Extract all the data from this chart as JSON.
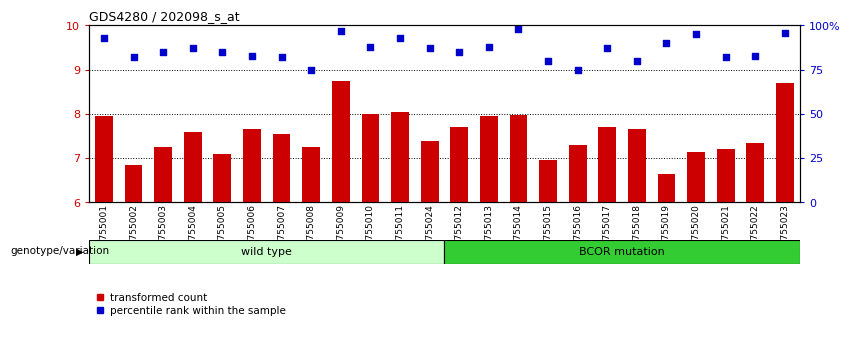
{
  "title": "GDS4280 / 202098_s_at",
  "samples": [
    "GSM755001",
    "GSM755002",
    "GSM755003",
    "GSM755004",
    "GSM755005",
    "GSM755006",
    "GSM755007",
    "GSM755008",
    "GSM755009",
    "GSM755010",
    "GSM755011",
    "GSM755024",
    "GSM755012",
    "GSM755013",
    "GSM755014",
    "GSM755015",
    "GSM755016",
    "GSM755017",
    "GSM755018",
    "GSM755019",
    "GSM755020",
    "GSM755021",
    "GSM755022",
    "GSM755023"
  ],
  "transformed_count": [
    7.95,
    6.85,
    7.25,
    7.6,
    7.1,
    7.65,
    7.55,
    7.25,
    8.75,
    8.0,
    8.05,
    7.4,
    7.7,
    7.95,
    7.98,
    6.95,
    7.3,
    7.7,
    7.65,
    6.65,
    7.15,
    7.2,
    7.35,
    8.7
  ],
  "percentile_rank": [
    93,
    82,
    85,
    87,
    85,
    83,
    82,
    75,
    97,
    88,
    93,
    87,
    85,
    88,
    98,
    80,
    75,
    87,
    80,
    90,
    95,
    82,
    83,
    96
  ],
  "wild_type_count": 12,
  "ylim_left": [
    6,
    10
  ],
  "ylim_right": [
    0,
    100
  ],
  "bar_color": "#cc0000",
  "dot_color": "#0000cc",
  "wild_type_label": "wild type",
  "mutation_label": "BCOR mutation",
  "wild_type_bg": "#ccffcc",
  "mutation_bg": "#33cc33",
  "genotype_label": "genotype/variation",
  "legend_bar": "transformed count",
  "legend_dot": "percentile rank within the sample",
  "yticks_left": [
    6,
    7,
    8,
    9,
    10
  ],
  "yticks_right": [
    0,
    25,
    50,
    75,
    100
  ],
  "grid_values": [
    7,
    8,
    9
  ],
  "left_tick_color": "#cc0000",
  "right_tick_color": "#0000cc",
  "bar_width": 0.6,
  "sample_bg_color": "#d8d8d8",
  "fig_width": 8.51,
  "fig_height": 3.54,
  "dpi": 100
}
